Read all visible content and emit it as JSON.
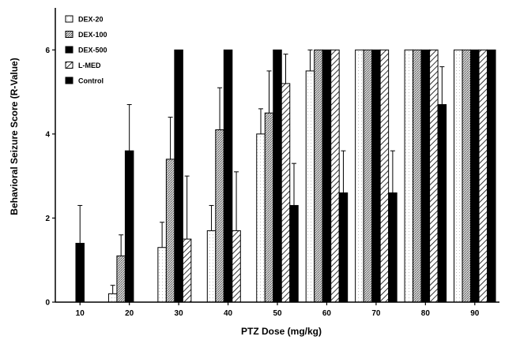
{
  "chart_data": {
    "type": "bar",
    "title": "",
    "xlabel": "PTZ Dose (mg/kg)",
    "ylabel": "Behavioral Seizure Score (R-Value)",
    "ylim": [
      0,
      7
    ],
    "yticks": [
      0,
      2,
      4,
      6
    ],
    "categories": [
      "10",
      "20",
      "30",
      "40",
      "50",
      "60",
      "70",
      "80",
      "90"
    ],
    "legend_position": "top-left",
    "grid": false,
    "series": [
      {
        "name": "DEX-20",
        "pattern": "white",
        "values": [
          0,
          0.2,
          1.3,
          1.7,
          4.0,
          5.5,
          6,
          6,
          6
        ],
        "errors": [
          0,
          0.2,
          0.6,
          0.6,
          0.6,
          0.5,
          0,
          0,
          0
        ]
      },
      {
        "name": "DEX-100",
        "pattern": "dotted",
        "values": [
          0,
          1.1,
          3.4,
          4.1,
          4.5,
          6,
          6,
          6,
          6
        ],
        "errors": [
          0,
          0.5,
          1.0,
          1.0,
          1.0,
          0,
          0,
          0,
          0
        ]
      },
      {
        "name": "DEX-500",
        "pattern": "black",
        "values": [
          1.4,
          3.6,
          6,
          6,
          6,
          6,
          6,
          6,
          6
        ],
        "errors": [
          0.9,
          1.1,
          0,
          0,
          0,
          0,
          0,
          0,
          0
        ]
      },
      {
        "name": "L-MED",
        "pattern": "hatch",
        "values": [
          0,
          0,
          1.5,
          1.7,
          5.2,
          6,
          6,
          6,
          6
        ],
        "errors": [
          0,
          0,
          1.5,
          1.4,
          0.7,
          0,
          0,
          0,
          0
        ]
      },
      {
        "name": "Control",
        "pattern": "black",
        "values": [
          0,
          0,
          0,
          0,
          2.3,
          2.6,
          2.6,
          4.7,
          6
        ],
        "errors": [
          0,
          0,
          0,
          0,
          1.0,
          1.0,
          1.0,
          0.9,
          0
        ]
      }
    ]
  }
}
